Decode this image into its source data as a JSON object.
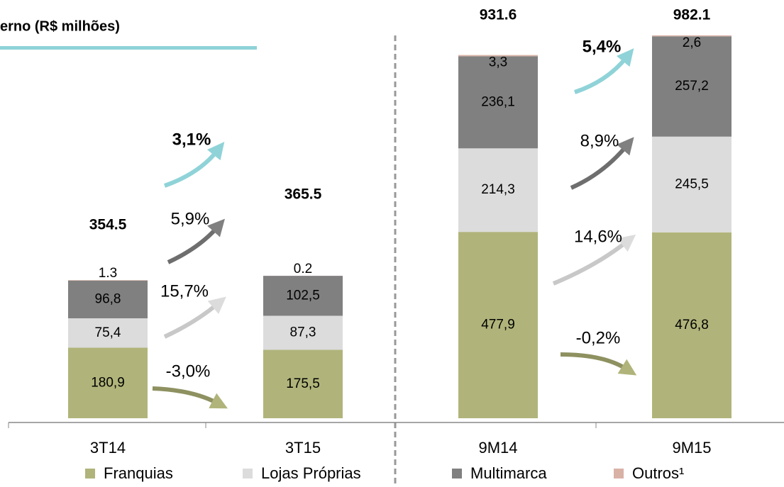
{
  "chart_data": {
    "type": "bar",
    "stacked": true,
    "title": "erno (R$ milhões)",
    "categories": [
      "3T14",
      "3T15",
      "9M14",
      "9M15"
    ],
    "series": [
      {
        "name": "Franquias",
        "color": "#b0b47a",
        "values": [
          180.9,
          175.5,
          477.9,
          476.8
        ],
        "value_labels": [
          "180,9",
          "175,5",
          "477,9",
          "476,8"
        ]
      },
      {
        "name": "Lojas Próprias",
        "color": "#dcdcdc",
        "values": [
          75.4,
          87.3,
          214.3,
          245.5
        ],
        "value_labels": [
          "75,4",
          "87,3",
          "214,3",
          "245,5"
        ]
      },
      {
        "name": "Multimarca",
        "color": "#808080",
        "values": [
          96.8,
          102.5,
          236.1,
          257.2
        ],
        "value_labels": [
          "96,8",
          "102,5",
          "236,1",
          "257,2"
        ]
      },
      {
        "name": "Outros¹",
        "color": "#d9b2a6",
        "values": [
          1.3,
          0.2,
          3.3,
          2.6
        ],
        "value_labels": [
          "1.3",
          "0.2",
          "3,3",
          "2,6"
        ]
      }
    ],
    "totals": [
      354.5,
      365.5,
      931.6,
      982.1
    ],
    "growth": [
      {
        "labels": [
          "-3,0%",
          "15,7%",
          "5,9%",
          "3,1%"
        ]
      },
      {
        "labels": [
          "-0,2%",
          "14,6%",
          "8,9%",
          "5,4%"
        ]
      }
    ],
    "growth_total_color": "#8fd3d8"
  }
}
